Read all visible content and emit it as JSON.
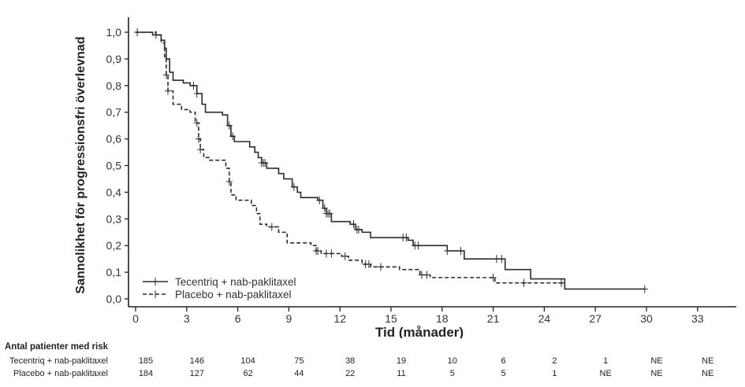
{
  "chart_data": {
    "type": "line",
    "subtype": "kaplan-meier",
    "title": "",
    "xlabel": "Tid (månader)",
    "ylabel": "Sannolikhet för progressionsfri överlevnad",
    "xlim": [
      0,
      35
    ],
    "ylim": [
      0,
      1.0
    ],
    "xticks": [
      0,
      3,
      6,
      9,
      12,
      15,
      18,
      21,
      24,
      27,
      30,
      33
    ],
    "xtick_labels": [
      "0",
      "3",
      "6",
      "9",
      "12",
      "15",
      "18",
      "21",
      "24",
      "27",
      "30",
      "33"
    ],
    "yticks": [
      0.0,
      0.1,
      0.2,
      0.3,
      0.4,
      0.5,
      0.6,
      0.7,
      0.8,
      0.9,
      1.0
    ],
    "ytick_labels": [
      "0,0",
      "0,1",
      "0,2",
      "0,3",
      "0,4",
      "0,5",
      "0,6",
      "0,7",
      "0,8",
      "0,9",
      "1,0"
    ],
    "grid": false,
    "legend_position": "bottom-left",
    "series": [
      {
        "name": "Tecentriq + nab-paklitaxel",
        "style": "solid",
        "color": "#2b2b2b",
        "steps": [
          [
            0,
            1.0
          ],
          [
            1.0,
            0.99
          ],
          [
            1.5,
            0.97
          ],
          [
            1.7,
            0.94
          ],
          [
            1.8,
            0.9
          ],
          [
            2.0,
            0.85
          ],
          [
            2.2,
            0.82
          ],
          [
            2.8,
            0.81
          ],
          [
            3.2,
            0.8
          ],
          [
            3.6,
            0.77
          ],
          [
            3.9,
            0.73
          ],
          [
            4.1,
            0.7
          ],
          [
            5.1,
            0.69
          ],
          [
            5.4,
            0.65
          ],
          [
            5.6,
            0.61
          ],
          [
            5.8,
            0.59
          ],
          [
            6.7,
            0.57
          ],
          [
            7.0,
            0.55
          ],
          [
            7.2,
            0.53
          ],
          [
            7.4,
            0.51
          ],
          [
            7.7,
            0.49
          ],
          [
            8.4,
            0.47
          ],
          [
            8.7,
            0.45
          ],
          [
            9.2,
            0.42
          ],
          [
            9.5,
            0.4
          ],
          [
            9.7,
            0.38
          ],
          [
            10.7,
            0.37
          ],
          [
            11.0,
            0.34
          ],
          [
            11.2,
            0.32
          ],
          [
            11.5,
            0.29
          ],
          [
            12.6,
            0.28
          ],
          [
            12.9,
            0.26
          ],
          [
            13.3,
            0.25
          ],
          [
            13.8,
            0.23
          ],
          [
            16.0,
            0.22
          ],
          [
            16.3,
            0.2
          ],
          [
            18.3,
            0.18
          ],
          [
            19.3,
            0.15
          ],
          [
            21.7,
            0.11
          ],
          [
            23.2,
            0.075
          ],
          [
            25.2,
            0.037
          ]
        ],
        "end_time": 29.9,
        "censored": [
          0.1,
          1.2,
          3.4,
          3.6,
          5.5,
          5.7,
          7.4,
          7.5,
          7.6,
          9.3,
          10.8,
          11.1,
          11.2,
          11.3,
          11.4,
          12.8,
          13.0,
          13.1,
          15.7,
          15.9,
          16.4,
          16.6,
          18.3,
          19.1,
          21.2,
          21.5,
          29.9
        ]
      },
      {
        "name": "Placebo + nab-paklitaxel",
        "style": "dashed",
        "color": "#2b2b2b",
        "steps": [
          [
            0,
            1.0
          ],
          [
            1.2,
            0.99
          ],
          [
            1.5,
            0.96
          ],
          [
            1.7,
            0.9
          ],
          [
            1.8,
            0.84
          ],
          [
            1.9,
            0.78
          ],
          [
            2.2,
            0.73
          ],
          [
            2.7,
            0.71
          ],
          [
            3.2,
            0.7
          ],
          [
            3.5,
            0.66
          ],
          [
            3.7,
            0.6
          ],
          [
            3.8,
            0.56
          ],
          [
            4.0,
            0.53
          ],
          [
            4.3,
            0.52
          ],
          [
            5.3,
            0.49
          ],
          [
            5.5,
            0.44
          ],
          [
            5.6,
            0.39
          ],
          [
            5.9,
            0.37
          ],
          [
            6.8,
            0.35
          ],
          [
            7.1,
            0.32
          ],
          [
            7.3,
            0.28
          ],
          [
            7.7,
            0.27
          ],
          [
            8.4,
            0.25
          ],
          [
            8.9,
            0.21
          ],
          [
            10.3,
            0.2
          ],
          [
            10.6,
            0.18
          ],
          [
            10.9,
            0.17
          ],
          [
            12.1,
            0.16
          ],
          [
            12.5,
            0.145
          ],
          [
            13.3,
            0.13
          ],
          [
            13.8,
            0.12
          ],
          [
            15.5,
            0.11
          ],
          [
            16.7,
            0.09
          ],
          [
            17.3,
            0.08
          ],
          [
            21.1,
            0.06
          ],
          [
            25.2,
            0.05
          ]
        ],
        "end_time": 25.2,
        "censored": [
          1.8,
          1.9,
          3.6,
          3.7,
          3.8,
          5.5,
          8.0,
          10.6,
          10.7,
          11.2,
          11.5,
          12.3,
          13.5,
          13.7,
          14.4,
          16.8,
          17.1,
          21.0,
          22.8,
          25.0
        ]
      }
    ],
    "risk_table": {
      "title": "Antal patienter med risk",
      "times": [
        0,
        3,
        6,
        9,
        12,
        15,
        18,
        21,
        24,
        27,
        30,
        33
      ],
      "rows": [
        {
          "label": "Tecentriq + nab-paklitaxel",
          "values": [
            "185",
            "146",
            "104",
            "75",
            "38",
            "19",
            "10",
            "6",
            "2",
            "1",
            "NE",
            "NE"
          ]
        },
        {
          "label": "Placebo + nab-paklitaxel",
          "values": [
            "184",
            "127",
            "62",
            "44",
            "22",
            "11",
            "5",
            "5",
            "1",
            "NE",
            "NE",
            "NE"
          ]
        }
      ]
    }
  }
}
